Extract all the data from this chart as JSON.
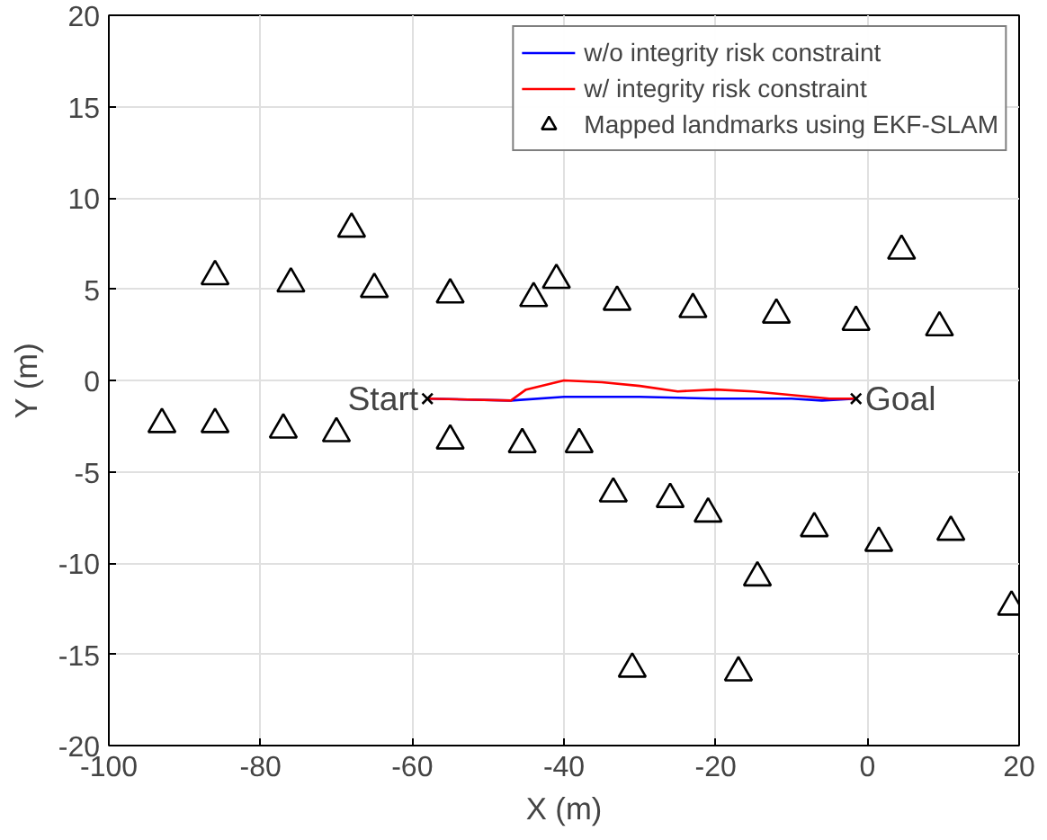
{
  "chart_data": {
    "type": "line",
    "xlabel": "X (m)",
    "ylabel": "Y (m)",
    "xlim": [
      -100,
      20
    ],
    "ylim": [
      -20,
      20
    ],
    "xticks": [
      -100,
      -80,
      -60,
      -40,
      -20,
      0,
      20
    ],
    "yticks": [
      -20,
      -15,
      -10,
      -5,
      0,
      5,
      10,
      15,
      20
    ],
    "grid": true,
    "legend": "top right",
    "series": [
      {
        "name": "w/o integrity risk constraint",
        "color": "#0000ff",
        "line_style": "solid",
        "x": [
          -58,
          -47,
          -40,
          -30,
          -20,
          -10,
          -6,
          -1.5
        ],
        "values": [
          -1,
          -1.1,
          -0.9,
          -0.9,
          -1.0,
          -1.0,
          -1.1,
          -1.0
        ]
      },
      {
        "name": "w/ integrity risk constraint",
        "color": "#ff0000",
        "line_style": "solid",
        "x": [
          -58,
          -47,
          -45,
          -40,
          -35,
          -30,
          -25,
          -20,
          -15,
          -10,
          -5,
          -1.5
        ],
        "values": [
          -1,
          -1.1,
          -0.5,
          0.0,
          -0.1,
          -0.3,
          -0.6,
          -0.5,
          -0.6,
          -0.8,
          -1.0,
          -1.0
        ]
      },
      {
        "name": "Mapped landmarks using EKF-SLAM",
        "color": "#000000",
        "type": "scatter",
        "marker": "triangle",
        "x": [
          -86,
          -76,
          -68,
          -65,
          -55,
          -44,
          -41,
          -33,
          -23,
          -12,
          -1.5,
          4.5,
          9.5,
          -93,
          -86,
          -77,
          -70,
          -55,
          -45.5,
          -38,
          -33.5,
          -26,
          -21,
          -14.5,
          -31,
          -17,
          -7,
          1.5,
          11,
          19
        ],
        "values": [
          5.7,
          5.3,
          8.3,
          5.0,
          4.7,
          4.5,
          5.5,
          4.3,
          3.9,
          3.6,
          3.2,
          7.1,
          2.9,
          -2.4,
          -2.4,
          -2.7,
          -2.9,
          -3.3,
          -3.5,
          -3.5,
          -6.2,
          -6.5,
          -7.3,
          -10.8,
          -15.8,
          -16.0,
          -8.1,
          -8.9,
          -8.3,
          -12.4
        ]
      },
      {
        "color": "#000000",
        "type": "scatter",
        "marker": "cross",
        "x": [
          -58,
          -1.5
        ],
        "values": [
          -1,
          -1
        ]
      }
    ],
    "annotations": [
      {
        "text": "Start",
        "x": -58,
        "y": -1
      },
      {
        "text": "Goal",
        "x": -1.5,
        "y": -1
      }
    ]
  }
}
